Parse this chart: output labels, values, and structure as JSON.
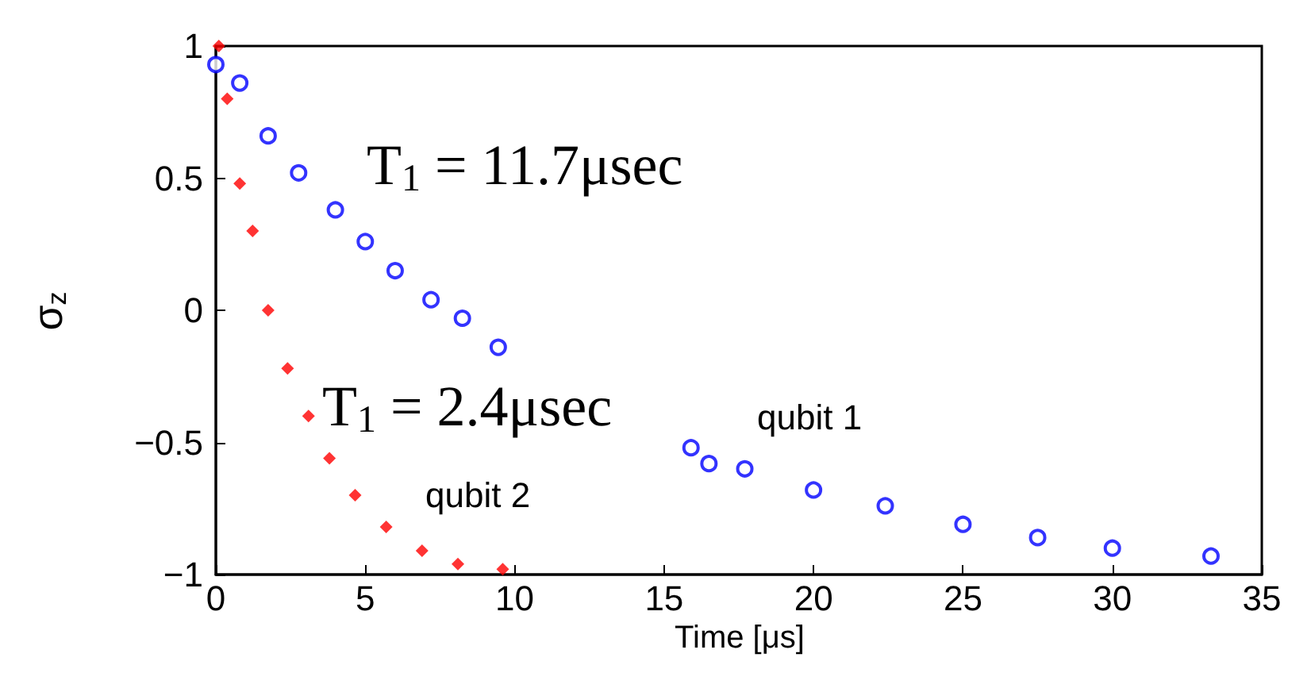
{
  "chart_data": {
    "type": "scatter",
    "xlabel": "Time [μs]",
    "ylabel": "σ$_{z}$",
    "xlim": [
      0,
      35
    ],
    "ylim": [
      -1,
      1
    ],
    "xticks": [
      0,
      5,
      10,
      15,
      20,
      25,
      30,
      35
    ],
    "yticks": [
      {
        "value": -1,
        "label": "−1"
      },
      {
        "value": -0.5,
        "label": "−0.5"
      },
      0,
      0.5,
      1
    ],
    "grid": false,
    "series": [
      {
        "name": "qubit 1",
        "color": "#0000ff",
        "marker": "circle",
        "x": [
          0,
          0.8,
          1.75,
          2.77,
          4,
          5,
          6,
          7.2,
          8.25,
          9.45,
          15.9,
          16.5,
          17.7,
          20,
          22.4,
          25,
          27.5,
          30,
          33.3
        ],
        "values": [
          0.93,
          0.86,
          0.66,
          0.52,
          0.38,
          0.26,
          0.15,
          0.04,
          -0.03,
          -0.14,
          -0.52,
          -0.58,
          -0.6,
          -0.68,
          -0.74,
          -0.81,
          -0.86,
          -0.9,
          -0.93
        ]
      },
      {
        "name": "qubit 2",
        "color": "#ff0000",
        "marker": "diamond",
        "x": [
          0.1,
          0.38,
          0.8,
          1.23,
          1.75,
          2.4,
          3.1,
          3.8,
          4.66,
          5.7,
          6.9,
          8.1,
          9.6
        ],
        "values": [
          1.0,
          0.8,
          0.48,
          0.3,
          0,
          -0.22,
          -0.4,
          -0.56,
          -0.7,
          -0.82,
          -0.91,
          -0.96,
          -0.98
        ]
      }
    ],
    "annotations": [
      "T$_{1}$ = 11.7μsec",
      "T$_{1}$ = 2.4μsec"
    ]
  }
}
